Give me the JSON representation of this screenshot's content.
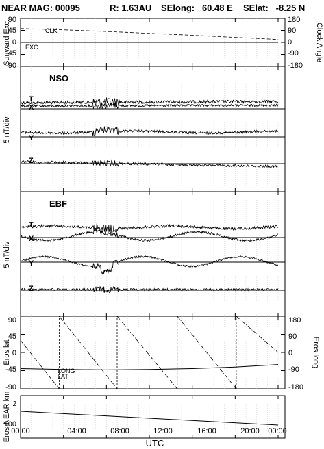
{
  "header": {
    "title_left": "NEAR MAG: 00095",
    "title_r": "R: 1.63AU",
    "title_selong": "SElong:   60.48 E",
    "title_selat": "SElat:   -8.25 N"
  },
  "chart_data": [
    {
      "type": "line",
      "panel": "clock",
      "ylabel_left": "Sunward Exc.",
      "ylabel_right": "Clock Angle",
      "yticks_left": [
        "90",
        "45",
        "0",
        "-45",
        "-90"
      ],
      "yticks_right": [
        "180",
        "90",
        "0",
        "-90",
        "-180"
      ],
      "ylim_left": [
        -90,
        90
      ],
      "series": [
        {
          "name": "CLK",
          "x": [
            0,
            4,
            8,
            12,
            16,
            20,
            24
          ],
          "y": [
            52,
            47,
            41,
            34,
            27,
            19,
            11
          ],
          "style": "dashed"
        },
        {
          "name": "EXC.",
          "x": [
            0,
            24
          ],
          "y": [
            0,
            0
          ],
          "style": "solid"
        }
      ]
    },
    {
      "type": "line",
      "panel": "nso",
      "title": "NSO",
      "ylabel": "5 nT/div",
      "components": [
        "T",
        "X",
        "Y",
        "Z"
      ]
    },
    {
      "type": "line",
      "panel": "ebf",
      "title": "EBF",
      "ylabel": "5 nT/div",
      "components": [
        "T",
        "X",
        "Y",
        "Z"
      ]
    },
    {
      "type": "line",
      "panel": "eros",
      "ylabel_left": "Eros lat",
      "ylabel_right": "Eros long",
      "yticks_left": [
        "90",
        "45",
        "0",
        "-45",
        "-90"
      ],
      "yticks_right": [
        "180",
        "90",
        "0",
        "-90",
        "-180"
      ],
      "ylim_left": [
        -90,
        90
      ],
      "series": [
        {
          "name": "LONG",
          "style": "dash-dot",
          "x": [
            0,
            3.6,
            3.6,
            9.0,
            9.0,
            14.6,
            14.6,
            20.1,
            20.1,
            24
          ],
          "y": [
            30,
            -90,
            90,
            -90,
            90,
            -90,
            90,
            -90,
            90,
            0
          ]
        },
        {
          "name": "LAT",
          "style": "solid",
          "x": [
            0,
            4,
            8,
            12,
            16,
            20,
            24
          ],
          "y": [
            -40,
            -42,
            -43,
            -42,
            -40,
            -36,
            -30
          ]
        }
      ]
    },
    {
      "type": "line",
      "panel": "distance",
      "ylabel": "Eros-NEAR km",
      "yticks": [
        "2",
        "100"
      ],
      "series": [
        {
          "name": "",
          "x": [
            0,
            24
          ],
          "y": [
            139,
            105
          ],
          "style": "solid"
        }
      ]
    }
  ],
  "x_axis": {
    "label": "UTC",
    "ticks": [
      "00:00",
      "04:00",
      "08:00",
      "12:00",
      "16:00",
      "20:00",
      "00:00"
    ]
  },
  "colors": {
    "ink": "#000000",
    "grid": "#bdbdbd",
    "background": "#ffffff"
  }
}
